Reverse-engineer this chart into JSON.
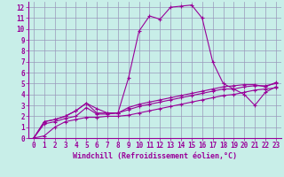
{
  "xlabel": "Windchill (Refroidissement éolien,°C)",
  "xlim": [
    -0.5,
    23.5
  ],
  "ylim": [
    0,
    12.5
  ],
  "xticks": [
    0,
    1,
    2,
    3,
    4,
    5,
    6,
    7,
    8,
    9,
    10,
    11,
    12,
    13,
    14,
    15,
    16,
    17,
    18,
    19,
    20,
    21,
    22,
    23
  ],
  "yticks": [
    0,
    1,
    2,
    3,
    4,
    5,
    6,
    7,
    8,
    9,
    10,
    11,
    12
  ],
  "bg_color": "#c8eee8",
  "line_color": "#990099",
  "grid_color": "#9999bb",
  "lines": [
    [
      0.0,
      0.2,
      1.0,
      1.5,
      1.7,
      1.9,
      1.9,
      2.0,
      2.0,
      2.1,
      2.3,
      2.5,
      2.7,
      2.9,
      3.1,
      3.3,
      3.5,
      3.7,
      3.9,
      4.0,
      4.2,
      4.4,
      4.5,
      4.6
    ],
    [
      0.0,
      1.3,
      1.5,
      1.8,
      2.0,
      2.8,
      2.2,
      2.2,
      2.3,
      2.6,
      2.9,
      3.1,
      3.3,
      3.5,
      3.7,
      3.9,
      4.1,
      4.3,
      4.5,
      4.5,
      4.7,
      4.8,
      4.8,
      5.0
    ],
    [
      0.0,
      1.5,
      1.7,
      2.0,
      2.5,
      3.2,
      2.3,
      2.3,
      2.3,
      2.8,
      3.1,
      3.3,
      3.5,
      3.7,
      3.9,
      4.1,
      4.3,
      4.5,
      4.7,
      4.8,
      4.9,
      4.9,
      4.7,
      5.1
    ],
    [
      0.0,
      1.5,
      1.7,
      2.0,
      2.5,
      3.2,
      2.7,
      2.3,
      2.3,
      5.5,
      9.8,
      11.2,
      10.9,
      12.0,
      12.1,
      12.2,
      11.0,
      7.0,
      5.0,
      4.5,
      4.0,
      3.0,
      4.2,
      4.7
    ]
  ],
  "tick_fontsize": 5.5,
  "xlabel_fontsize": 6.0
}
